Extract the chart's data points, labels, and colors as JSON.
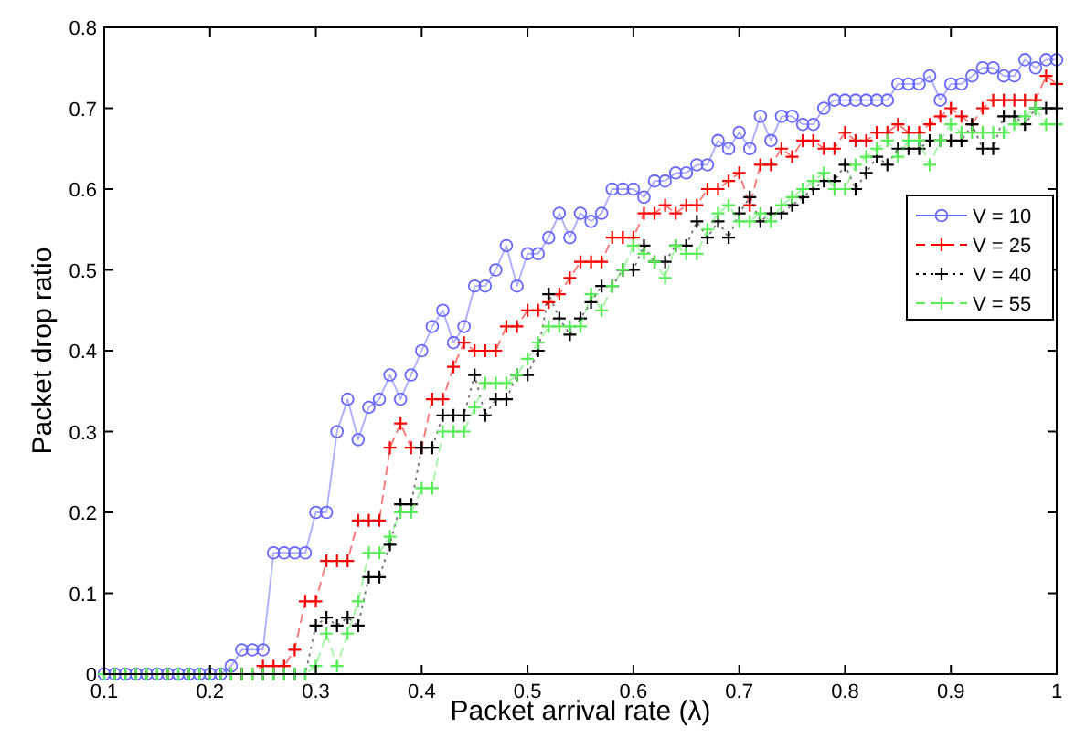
{
  "chart_data": {
    "type": "line",
    "xlabel": "Packet arrival rate (λ)",
    "ylabel": "Packet drop ratio",
    "x": [
      0.1,
      0.11,
      0.12,
      0.13,
      0.14,
      0.15,
      0.16,
      0.17,
      0.18,
      0.19,
      0.2,
      0.21,
      0.22,
      0.23,
      0.24,
      0.25,
      0.26,
      0.27,
      0.28,
      0.29,
      0.3,
      0.31,
      0.32,
      0.33,
      0.34,
      0.35,
      0.36,
      0.37,
      0.38,
      0.39,
      0.4,
      0.41,
      0.42,
      0.43,
      0.44,
      0.45,
      0.46,
      0.47,
      0.48,
      0.49,
      0.5,
      0.51,
      0.52,
      0.53,
      0.54,
      0.55,
      0.56,
      0.57,
      0.58,
      0.59,
      0.6,
      0.61,
      0.62,
      0.63,
      0.64,
      0.65,
      0.66,
      0.67,
      0.68,
      0.69,
      0.7,
      0.71,
      0.72,
      0.73,
      0.74,
      0.75,
      0.76,
      0.77,
      0.78,
      0.79,
      0.8,
      0.81,
      0.82,
      0.83,
      0.84,
      0.85,
      0.86,
      0.87,
      0.88,
      0.89,
      0.9,
      0.91,
      0.92,
      0.93,
      0.94,
      0.95,
      0.96,
      0.97,
      0.98,
      0.99,
      1
    ],
    "series": [
      {
        "name": "V = 10",
        "color": "#6666ff",
        "marker": "circle",
        "line_style": "solid",
        "values": [
          0,
          0,
          0,
          0,
          0,
          0,
          0,
          0,
          0,
          0,
          0,
          0,
          0.01,
          0.03,
          0.03,
          0.03,
          0.15,
          0.15,
          0.15,
          0.15,
          0.2,
          0.2,
          0.3,
          0.34,
          0.29,
          0.33,
          0.34,
          0.37,
          0.34,
          0.37,
          0.4,
          0.43,
          0.45,
          0.41,
          0.43,
          0.48,
          0.48,
          0.5,
          0.53,
          0.48,
          0.52,
          0.52,
          0.54,
          0.57,
          0.54,
          0.57,
          0.56,
          0.57,
          0.6,
          0.6,
          0.6,
          0.59,
          0.61,
          0.61,
          0.62,
          0.62,
          0.63,
          0.63,
          0.66,
          0.65,
          0.67,
          0.65,
          0.69,
          0.66,
          0.69,
          0.69,
          0.68,
          0.68,
          0.7,
          0.71,
          0.71,
          0.71,
          0.71,
          0.71,
          0.71,
          0.73,
          0.73,
          0.73,
          0.74,
          0.71,
          0.73,
          0.73,
          0.74,
          0.75,
          0.75,
          0.74,
          0.74,
          0.76,
          0.75,
          0.76,
          0.76
        ]
      },
      {
        "name": "V = 25",
        "color": "#ff0000",
        "marker": "cross",
        "line_style": "dashed",
        "values": [
          null,
          null,
          null,
          null,
          null,
          null,
          null,
          null,
          null,
          null,
          null,
          null,
          0,
          0,
          0,
          0.01,
          0.01,
          0.01,
          0.03,
          0.09,
          0.09,
          0.14,
          0.14,
          0.14,
          0.19,
          0.19,
          0.19,
          0.28,
          0.31,
          0.28,
          0.28,
          0.34,
          0.34,
          0.38,
          0.41,
          0.4,
          0.4,
          0.4,
          0.43,
          0.43,
          0.45,
          0.45,
          0.46,
          0.47,
          0.49,
          0.51,
          0.51,
          0.51,
          0.54,
          0.54,
          0.54,
          0.57,
          0.57,
          0.58,
          0.57,
          0.58,
          0.58,
          0.6,
          0.6,
          0.61,
          0.62,
          0.58,
          0.63,
          0.63,
          0.65,
          0.64,
          0.66,
          0.66,
          0.65,
          0.65,
          0.67,
          0.66,
          0.66,
          0.67,
          0.67,
          0.68,
          0.67,
          0.67,
          0.68,
          0.69,
          0.7,
          0.69,
          0.68,
          0.7,
          0.71,
          0.71,
          0.71,
          0.71,
          0.71,
          0.74,
          0.73
        ]
      },
      {
        "name": "V = 40",
        "color": "#000000",
        "marker": "cross",
        "line_style": "dotted",
        "values": [
          0,
          0,
          0,
          0,
          0,
          0,
          0,
          0,
          0,
          0,
          0,
          0,
          0,
          0,
          0,
          0,
          0,
          0,
          0,
          0,
          0.06,
          0.07,
          0.06,
          0.07,
          0.06,
          0.12,
          0.12,
          0.16,
          0.21,
          0.21,
          0.28,
          0.28,
          0.32,
          0.32,
          0.32,
          0.37,
          0.32,
          0.34,
          0.34,
          0.37,
          0.37,
          0.4,
          0.47,
          0.44,
          0.42,
          0.44,
          0.46,
          0.48,
          0.48,
          0.5,
          0.5,
          0.53,
          0.51,
          0.51,
          0.53,
          0.53,
          0.56,
          0.54,
          0.56,
          0.54,
          0.57,
          0.59,
          0.56,
          0.57,
          0.57,
          0.58,
          0.59,
          0.6,
          0.61,
          0.61,
          0.63,
          0.6,
          0.62,
          0.64,
          0.63,
          0.65,
          0.65,
          0.65,
          0.66,
          0.66,
          0.66,
          0.66,
          0.68,
          0.65,
          0.65,
          0.69,
          0.69,
          0.68,
          0.7,
          0.7,
          0.7
        ]
      },
      {
        "name": "V = 55",
        "color": "#55ee55",
        "marker": "cross",
        "line_style": "dashed",
        "values": [
          0,
          0,
          0,
          0,
          0,
          0,
          0,
          0,
          0,
          0,
          0,
          0,
          0,
          0,
          0,
          0,
          0,
          0,
          0,
          0,
          0.01,
          0.05,
          0.01,
          0.05,
          0.09,
          0.15,
          0.15,
          0.17,
          0.2,
          0.2,
          0.23,
          0.23,
          0.3,
          0.3,
          0.3,
          0.33,
          0.36,
          0.36,
          0.36,
          0.37,
          0.39,
          0.41,
          0.43,
          0.43,
          0.43,
          0.43,
          0.47,
          0.45,
          0.48,
          0.5,
          0.53,
          0.52,
          0.51,
          0.49,
          0.53,
          0.52,
          0.52,
          0.55,
          0.57,
          0.58,
          0.56,
          0.56,
          0.57,
          0.56,
          0.58,
          0.59,
          0.6,
          0.61,
          0.62,
          0.6,
          0.6,
          0.63,
          0.64,
          0.65,
          0.66,
          0.64,
          0.66,
          0.66,
          0.63,
          0.66,
          0.68,
          0.67,
          0.67,
          0.67,
          0.67,
          0.67,
          0.68,
          0.69,
          0.7,
          0.68,
          0.68
        ]
      }
    ],
    "xlim": [
      0.1,
      1
    ],
    "xticks": [
      0.1,
      0.2,
      0.3,
      0.4,
      0.5,
      0.6,
      0.7,
      0.8,
      0.9,
      1
    ],
    "ylim": [
      0,
      0.8
    ],
    "yticks": [
      0,
      0.1,
      0.2,
      0.3,
      0.4,
      0.5,
      0.6,
      0.7,
      0.8
    ],
    "grid": false,
    "legend": "right"
  }
}
